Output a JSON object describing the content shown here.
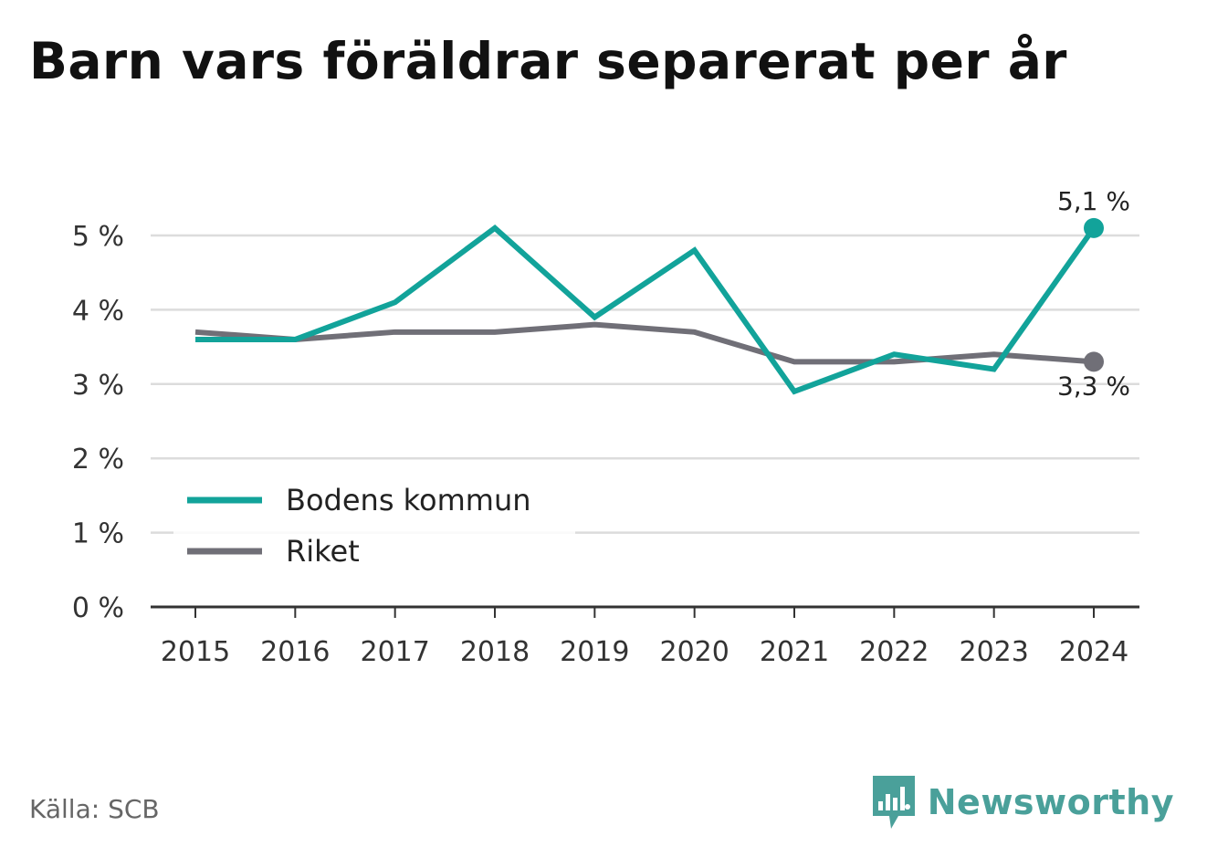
{
  "title": "Barn vars föräldrar separerat per år",
  "source": "Källa: SCB",
  "brand": {
    "name": "Newsworthy",
    "icon": "newsworthy-logo-icon",
    "color": "#4aa09a"
  },
  "chart_data": {
    "type": "line",
    "x": [
      "2015",
      "2016",
      "2017",
      "2018",
      "2019",
      "2020",
      "2021",
      "2022",
      "2023",
      "2024"
    ],
    "ylim": [
      0,
      5.3
    ],
    "yticks": [
      0,
      1,
      2,
      3,
      4,
      5
    ],
    "ytick_labels": [
      "0 %",
      "1 %",
      "2 %",
      "3 %",
      "4 %",
      "5 %"
    ],
    "grid": true,
    "legend_position": "lower-left",
    "series": [
      {
        "name": "Bodens kommun",
        "color": "#12a39a",
        "values": [
          3.6,
          3.6,
          4.1,
          5.1,
          3.9,
          4.8,
          2.9,
          3.4,
          3.2,
          5.1
        ],
        "end_label": "5,1 %"
      },
      {
        "name": "Riket",
        "color": "#706f77",
        "values": [
          3.7,
          3.6,
          3.7,
          3.7,
          3.8,
          3.7,
          3.3,
          3.3,
          3.4,
          3.3
        ],
        "end_label": "3,3 %"
      }
    ]
  }
}
